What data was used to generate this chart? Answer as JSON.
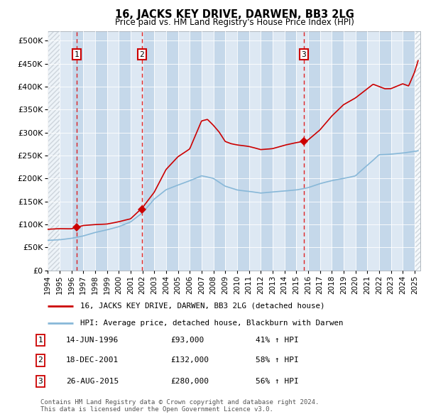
{
  "title": "16, JACKS KEY DRIVE, DARWEN, BB3 2LG",
  "subtitle": "Price paid vs. HM Land Registry's House Price Index (HPI)",
  "xlim": [
    1994.0,
    2025.5
  ],
  "ylim": [
    0,
    520000
  ],
  "yticks": [
    0,
    50000,
    100000,
    150000,
    200000,
    250000,
    300000,
    350000,
    400000,
    450000,
    500000
  ],
  "ytick_labels": [
    "£0",
    "£50K",
    "£100K",
    "£150K",
    "£200K",
    "£250K",
    "£300K",
    "£350K",
    "£400K",
    "£450K",
    "£500K"
  ],
  "xtick_years": [
    1994,
    1995,
    1996,
    1997,
    1998,
    1999,
    2000,
    2001,
    2002,
    2003,
    2004,
    2005,
    2006,
    2007,
    2008,
    2009,
    2010,
    2011,
    2012,
    2013,
    2014,
    2015,
    2016,
    2017,
    2018,
    2019,
    2020,
    2021,
    2022,
    2023,
    2024,
    2025
  ],
  "sale_dates": [
    1996.45,
    2001.96,
    2015.65
  ],
  "sale_prices": [
    93000,
    132000,
    280000
  ],
  "sale_labels": [
    "1",
    "2",
    "3"
  ],
  "vline_color": "#dd0000",
  "hpi_color": "#88b8d8",
  "price_color": "#cc0000",
  "dot_color": "#cc0000",
  "bg_color": "#dde8f3",
  "shade_color": "#c5d8ea",
  "hatch_color": "#c0c8d0",
  "legend_line1": "16, JACKS KEY DRIVE, DARWEN, BB3 2LG (detached house)",
  "legend_line2": "HPI: Average price, detached house, Blackburn with Darwen",
  "table_data": [
    [
      "1",
      "14-JUN-1996",
      "£93,000",
      "41% ↑ HPI"
    ],
    [
      "2",
      "18-DEC-2001",
      "£132,000",
      "58% ↑ HPI"
    ],
    [
      "3",
      "26-AUG-2015",
      "£280,000",
      "56% ↑ HPI"
    ]
  ],
  "copyright_text": "Contains HM Land Registry data © Crown copyright and database right 2024.\nThis data is licensed under the Open Government Licence v3.0."
}
